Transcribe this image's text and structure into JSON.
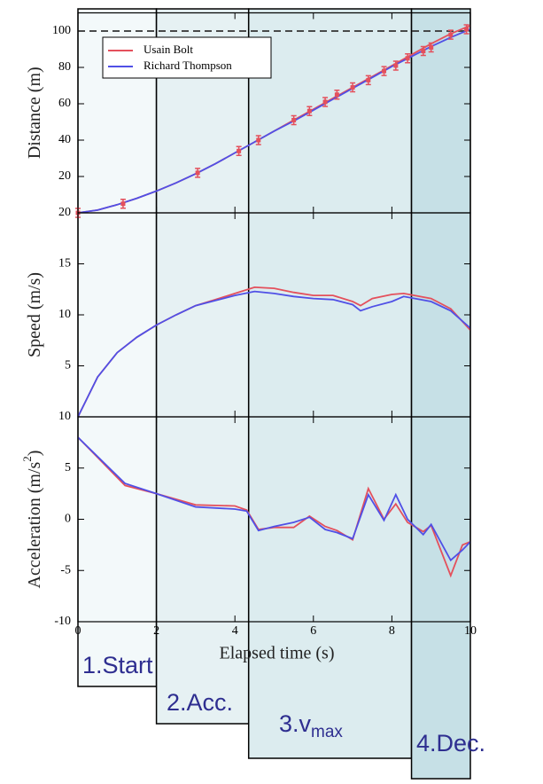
{
  "chart_data": [
    {
      "type": "line",
      "ylabel": "Distance (m)",
      "xlim": [
        0,
        10
      ],
      "ylim": [
        0,
        110
      ],
      "yticks": [
        20,
        40,
        60,
        80,
        100
      ],
      "reference": 100,
      "x": [
        0,
        0.5,
        1,
        1.5,
        2,
        2.5,
        3,
        3.5,
        4,
        4.5,
        5,
        5.5,
        6,
        6.5,
        7,
        7.5,
        8,
        8.5,
        9,
        9.5,
        10
      ],
      "series": [
        {
          "name": "Usain Bolt",
          "color": "#e4505c",
          "values": [
            0,
            1.5,
            4.5,
            8,
            12,
            16.5,
            21.5,
            27,
            33,
            39,
            45,
            51,
            57,
            63,
            69,
            75,
            81,
            87,
            93,
            98.5,
            103
          ]
        },
        {
          "name": "Richard Thompson",
          "color": "#5050e6",
          "values": [
            0,
            1.5,
            4.5,
            8,
            12,
            16.5,
            21.5,
            27,
            33,
            39,
            45,
            50.5,
            56.5,
            62.5,
            68.5,
            74.5,
            80.5,
            86,
            91.5,
            96.5,
            101
          ]
        }
      ],
      "points": {
        "x": [
          0,
          1.15,
          3.05,
          4.1,
          4.6,
          5.5,
          5.9,
          6.3,
          6.6,
          7.0,
          7.4,
          7.8,
          8.1,
          8.4,
          8.8,
          9.0,
          9.5,
          9.9
        ],
        "values": [
          0,
          5,
          22,
          34,
          40,
          51,
          56,
          61,
          65,
          69,
          73,
          78,
          81,
          85,
          89,
          91,
          98,
          101
        ]
      },
      "legend": "upper left"
    },
    {
      "type": "line",
      "ylabel": "Speed (m/s)",
      "xlim": [
        0,
        10
      ],
      "ylim": [
        0,
        20
      ],
      "yticks": [
        5,
        10,
        15,
        20
      ],
      "x": [
        0,
        0.5,
        1,
        1.5,
        2,
        2.5,
        3,
        3.5,
        4,
        4.5,
        5,
        5.5,
        6,
        6.5,
        7,
        7.2,
        7.5,
        8,
        8.3,
        9,
        9.5,
        10
      ],
      "series": [
        {
          "name": "Usain Bolt",
          "color": "#e4505c",
          "values": [
            0,
            3.9,
            6.3,
            7.8,
            9,
            10,
            10.9,
            11.5,
            12.1,
            12.7,
            12.6,
            12.2,
            11.9,
            11.9,
            11.3,
            10.9,
            11.6,
            12,
            12.1,
            11.6,
            10.6,
            8.5
          ]
        },
        {
          "name": "Richard Thompson",
          "color": "#5050e6",
          "values": [
            0,
            3.9,
            6.3,
            7.8,
            9,
            10,
            10.9,
            11.4,
            11.9,
            12.3,
            12.1,
            11.8,
            11.6,
            11.5,
            11,
            10.4,
            10.8,
            11.3,
            11.8,
            11.3,
            10.4,
            8.7
          ]
        }
      ]
    },
    {
      "type": "line",
      "ylabel": "Acceleration (m/s",
      "ylabel_sup": "2",
      "ylabel_end": ")",
      "xlabel": "Elapsed time (s)",
      "xlim": [
        0,
        10
      ],
      "xticks": [
        0,
        2,
        4,
        6,
        8,
        10
      ],
      "ylim": [
        -10,
        10
      ],
      "yticks": [
        -10,
        -5,
        0,
        5,
        10
      ],
      "x": [
        0,
        1.2,
        2,
        3,
        4,
        4.3,
        4.6,
        5,
        5.5,
        5.9,
        6.3,
        6.6,
        7,
        7.4,
        7.8,
        8.1,
        8.4,
        8.8,
        9,
        9.5,
        9.8,
        10
      ],
      "series": [
        {
          "name": "Usain Bolt",
          "color": "#e4505c",
          "values": [
            8,
            3.3,
            2.5,
            1.4,
            1.3,
            0.9,
            -1,
            -0.8,
            -0.8,
            0.3,
            -0.7,
            -1.1,
            -2,
            3,
            0,
            1.5,
            -0.3,
            -1.2,
            -0.6,
            -5.5,
            -2.5,
            -2.2
          ]
        },
        {
          "name": "Richard Thompson",
          "color": "#5050e6",
          "values": [
            8,
            3.5,
            2.5,
            1.2,
            1,
            0.8,
            -1.1,
            -0.7,
            -0.3,
            0.2,
            -1,
            -1.3,
            -1.9,
            2.4,
            -0.1,
            2.4,
            0,
            -1.5,
            -0.5,
            -4,
            -3,
            -2.2
          ]
        }
      ]
    }
  ],
  "phases": [
    {
      "label": "1.Start",
      "start": 0,
      "end": 2,
      "color": "#f3f9fa"
    },
    {
      "label": "2.Acc.",
      "start": 2,
      "end": 4.35,
      "color": "#e6f1f3"
    },
    {
      "label": "3.v",
      "sub": "max",
      "start": 4.35,
      "end": 8.5,
      "color": "#dcecef"
    },
    {
      "label": "4.Dec.",
      "start": 8.5,
      "end": 10,
      "color": "#c6e0e6"
    }
  ]
}
